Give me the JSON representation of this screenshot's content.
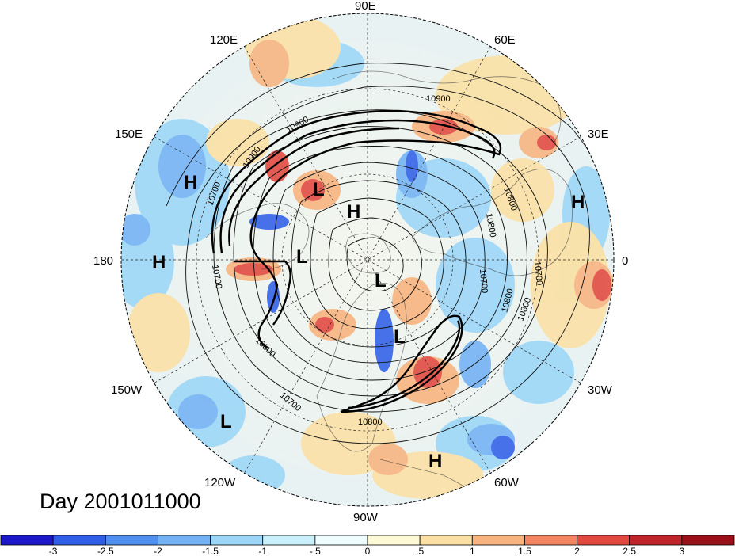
{
  "title": "Day 2001011000",
  "longitude_labels": [
    "90E",
    "60E",
    "30E",
    "0",
    "30W",
    "60W",
    "90W",
    "120W",
    "150W",
    "180",
    "150E",
    "120E"
  ],
  "contour_labels": [
    "10900",
    "10900",
    "10800",
    "10800",
    "10700",
    "10700",
    "10800",
    "10800",
    "10700",
    "10700",
    "10700",
    "10800",
    "10800",
    "10900"
  ],
  "pressure_centers": [
    {
      "type": "H",
      "label": "H"
    },
    {
      "type": "L",
      "label": "L"
    },
    {
      "type": "H",
      "label": "H"
    },
    {
      "type": "H",
      "label": "H"
    },
    {
      "type": "L",
      "label": "L"
    },
    {
      "type": "H",
      "label": "H"
    },
    {
      "type": "L",
      "label": "L"
    },
    {
      "type": "L",
      "label": "L"
    },
    {
      "type": "L",
      "label": "L"
    },
    {
      "type": "H",
      "label": "H"
    }
  ],
  "colorbar": {
    "ticks": [
      "-3",
      "-2.5",
      "-2",
      "-1.5",
      "-1",
      "-.5",
      "0",
      ".5",
      "1",
      "1.5",
      "2",
      "2.5",
      "3"
    ],
    "colors": [
      "#1c17c9",
      "#2f5fe8",
      "#4e8ff0",
      "#72b1f4",
      "#9bd6f8",
      "#c9f0fb",
      "#eefcfd",
      "#fdf8d6",
      "#fbe0a3",
      "#f8b37e",
      "#f28560",
      "#e2483e",
      "#c0242a",
      "#9a1018"
    ]
  }
}
